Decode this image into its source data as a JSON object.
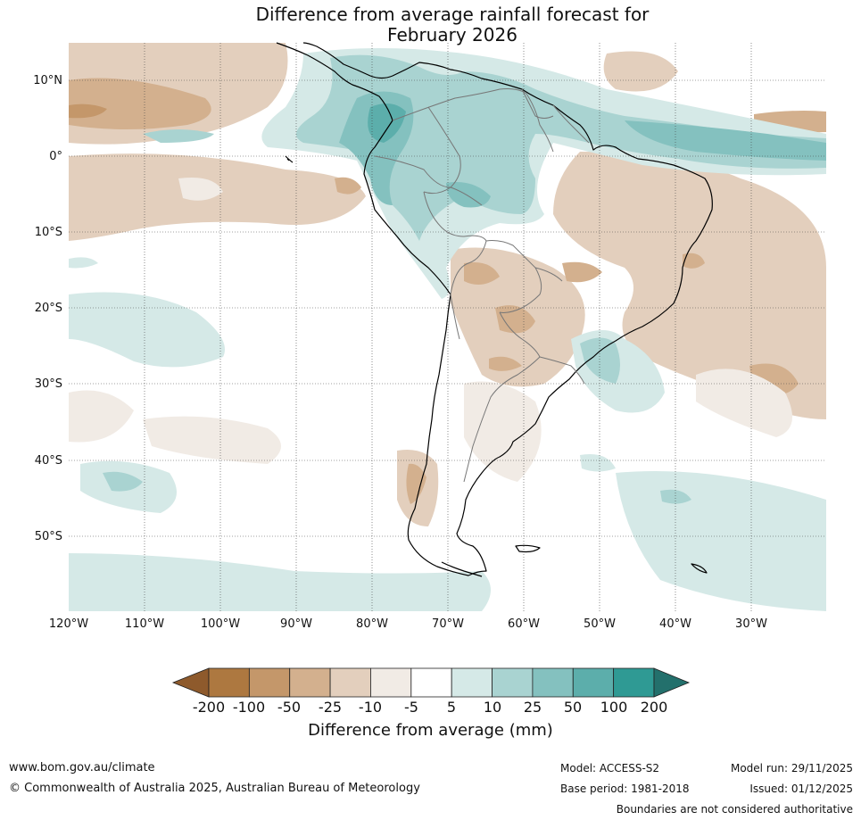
{
  "title": {
    "line1": "Difference from average rainfall forecast for",
    "line2": "February 2026"
  },
  "map": {
    "lat_labels": [
      "10°N",
      "0°",
      "10°S",
      "20°S",
      "30°S",
      "40°S",
      "50°S"
    ],
    "lon_labels": [
      "120°W",
      "110°W",
      "100°W",
      "90°W",
      "80°W",
      "70°W",
      "60°W",
      "50°W",
      "40°W",
      "30°W"
    ]
  },
  "colorbar": {
    "ticks": [
      "-200",
      "-100",
      "-50",
      "-25",
      "-10",
      "-5",
      "5",
      "10",
      "25",
      "50",
      "100",
      "200"
    ],
    "colors": [
      "#8e5a2c",
      "#ad7840",
      "#c4976a",
      "#d3b08e",
      "#e3cfbd",
      "#f1ebe5",
      "#ffffff",
      "#d5e9e7",
      "#a9d3d1",
      "#84c1bf",
      "#5caeab",
      "#2f9a94",
      "#23706c"
    ],
    "label": "Difference from average (mm)"
  },
  "footer": {
    "website": "www.bom.gov.au/climate",
    "copyright": "© Commonwealth of Australia 2025, Australian Bureau of Meteorology",
    "model": "Model: ACCESS-S2",
    "base_period": "Base period: 1981-2018",
    "model_run": "Model run: 29/11/2025",
    "issued": "Issued: 01/12/2025",
    "disclaimer": "Boundaries are not considered authoritative"
  }
}
